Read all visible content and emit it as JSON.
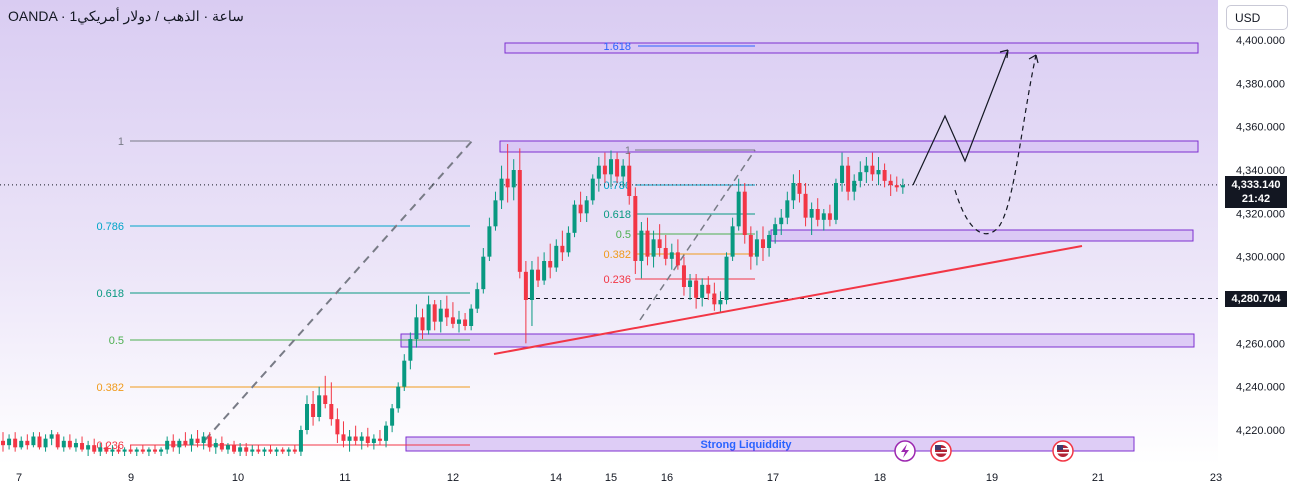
{
  "header": {
    "symbol_title": "OANDA · 1ساعة · الذهب / دولار أمريكي",
    "currency_button": "USD"
  },
  "price_axis": {
    "ticks": [
      "4,400.000",
      "4,380.000",
      "4,360.000",
      "4,340.000",
      "4,320.000",
      "4,300.000",
      "4,280.000",
      "4,260.000",
      "4,240.000",
      "4,220.000"
    ],
    "last_price": "4,333.140",
    "countdown": "21:42",
    "marked_level": "4,280.704"
  },
  "time_axis": {
    "ticks": [
      "7",
      "9",
      "10",
      "11",
      "12",
      "14",
      "15",
      "16",
      "17",
      "18",
      "19",
      "21",
      "23"
    ]
  },
  "annotations": {
    "fib_large": [
      {
        "label": "1",
        "color": "#787b86"
      },
      {
        "label": "0.786",
        "color": "#00a5c8"
      },
      {
        "label": "0.618",
        "color": "#089981"
      },
      {
        "label": "0.5",
        "color": "#4caf50"
      },
      {
        "label": "0.382",
        "color": "#f09a1b"
      },
      {
        "label": "0.236",
        "color": "#f23645"
      }
    ],
    "fib_small": [
      {
        "label": "1",
        "color": "#787b86"
      },
      {
        "label": "0.786",
        "color": "#00a5c8"
      },
      {
        "label": "0.618",
        "color": "#089981"
      },
      {
        "label": "0.5",
        "color": "#4caf50"
      },
      {
        "label": "0.382",
        "color": "#f09a1b"
      },
      {
        "label": "0.236",
        "color": "#f23645"
      }
    ],
    "extension_label": "1.618",
    "liquidity_label": "Strong Liquiddity"
  },
  "chart_data": {
    "type": "candlestick",
    "x_axis_ticks": [
      "7",
      "9",
      "10",
      "11",
      "12",
      "14",
      "15",
      "16",
      "17",
      "18",
      "19",
      "21",
      "23"
    ],
    "y_range": [
      4209,
      4410
    ],
    "colors": {
      "up": "#089981",
      "down": "#f23645",
      "zone_fill": "#d8c4f5",
      "zone_border": "#7d2fd0",
      "trendline": "#f23645",
      "background": "#ebe3f7"
    },
    "last_price": 4333.14,
    "marked_level": 4280.704,
    "candles": [
      {
        "o": 4215,
        "h": 4219,
        "l": 4210,
        "c": 4213
      },
      {
        "o": 4213,
        "h": 4218,
        "l": 4211,
        "c": 4216
      },
      {
        "o": 4216,
        "h": 4219,
        "l": 4210,
        "c": 4212
      },
      {
        "o": 4212,
        "h": 4217,
        "l": 4211,
        "c": 4215
      },
      {
        "o": 4215,
        "h": 4218,
        "l": 4211,
        "c": 4213
      },
      {
        "o": 4213,
        "h": 4219,
        "l": 4212,
        "c": 4217
      },
      {
        "o": 4217,
        "h": 4219,
        "l": 4211,
        "c": 4212
      },
      {
        "o": 4212,
        "h": 4218,
        "l": 4210,
        "c": 4216
      },
      {
        "o": 4216,
        "h": 4220,
        "l": 4213,
        "c": 4218
      },
      {
        "o": 4218,
        "h": 4219,
        "l": 4211,
        "c": 4212
      },
      {
        "o": 4212,
        "h": 4217,
        "l": 4210,
        "c": 4215
      },
      {
        "o": 4215,
        "h": 4218,
        "l": 4211,
        "c": 4212
      },
      {
        "o": 4212,
        "h": 4216,
        "l": 4210,
        "c": 4214
      },
      {
        "o": 4214,
        "h": 4217,
        "l": 4210,
        "c": 4211
      },
      {
        "o": 4211,
        "h": 4215,
        "l": 4208,
        "c": 4213
      },
      {
        "o": 4213,
        "h": 4216,
        "l": 4209,
        "c": 4210
      },
      {
        "o": 4210,
        "h": 4214,
        "l": 4208,
        "c": 4212
      },
      {
        "o": 4212,
        "h": 4214,
        "l": 4209,
        "c": 4210
      },
      {
        "o": 4210,
        "h": 4213,
        "l": 4208,
        "c": 4211
      },
      {
        "o": 4211,
        "h": 4213,
        "l": 4209,
        "c": 4210
      },
      {
        "o": 4210,
        "h": 4212,
        "l": 4208,
        "c": 4211
      },
      {
        "o": 4211,
        "h": 4213,
        "l": 4209,
        "c": 4210
      },
      {
        "o": 4210,
        "h": 4212,
        "l": 4208,
        "c": 4211
      },
      {
        "o": 4211,
        "h": 4213,
        "l": 4209,
        "c": 4210
      },
      {
        "o": 4210,
        "h": 4212,
        "l": 4208,
        "c": 4211
      },
      {
        "o": 4211,
        "h": 4213,
        "l": 4209,
        "c": 4210
      },
      {
        "o": 4210,
        "h": 4212,
        "l": 4208,
        "c": 4211
      },
      {
        "o": 4211,
        "h": 4217,
        "l": 4209,
        "c": 4215
      },
      {
        "o": 4215,
        "h": 4218,
        "l": 4210,
        "c": 4212
      },
      {
        "o": 4212,
        "h": 4216,
        "l": 4209,
        "c": 4215
      },
      {
        "o": 4215,
        "h": 4219,
        "l": 4212,
        "c": 4213
      },
      {
        "o": 4213,
        "h": 4218,
        "l": 4210,
        "c": 4216
      },
      {
        "o": 4216,
        "h": 4220,
        "l": 4212,
        "c": 4214
      },
      {
        "o": 4214,
        "h": 4219,
        "l": 4211,
        "c": 4217
      },
      {
        "o": 4217,
        "h": 4219,
        "l": 4210,
        "c": 4212
      },
      {
        "o": 4212,
        "h": 4216,
        "l": 4209,
        "c": 4214
      },
      {
        "o": 4214,
        "h": 4217,
        "l": 4210,
        "c": 4211
      },
      {
        "o": 4211,
        "h": 4214,
        "l": 4209,
        "c": 4213
      },
      {
        "o": 4213,
        "h": 4215,
        "l": 4209,
        "c": 4210
      },
      {
        "o": 4210,
        "h": 4214,
        "l": 4208,
        "c": 4212
      },
      {
        "o": 4212,
        "h": 4214,
        "l": 4208,
        "c": 4210
      },
      {
        "o": 4210,
        "h": 4213,
        "l": 4208,
        "c": 4211
      },
      {
        "o": 4211,
        "h": 4213,
        "l": 4209,
        "c": 4210
      },
      {
        "o": 4210,
        "h": 4212,
        "l": 4208,
        "c": 4211
      },
      {
        "o": 4211,
        "h": 4213,
        "l": 4209,
        "c": 4210
      },
      {
        "o": 4210,
        "h": 4212,
        "l": 4208,
        "c": 4211
      },
      {
        "o": 4211,
        "h": 4212,
        "l": 4209,
        "c": 4210
      },
      {
        "o": 4210,
        "h": 4212,
        "l": 4208,
        "c": 4211
      },
      {
        "o": 4211,
        "h": 4213,
        "l": 4209,
        "c": 4210
      },
      {
        "o": 4210,
        "h": 4222,
        "l": 4208,
        "c": 4220
      },
      {
        "o": 4220,
        "h": 4236,
        "l": 4218,
        "c": 4232
      },
      {
        "o": 4232,
        "h": 4238,
        "l": 4222,
        "c": 4226
      },
      {
        "o": 4226,
        "h": 4240,
        "l": 4224,
        "c": 4236
      },
      {
        "o": 4236,
        "h": 4245,
        "l": 4230,
        "c": 4232
      },
      {
        "o": 4232,
        "h": 4242,
        "l": 4222,
        "c": 4225
      },
      {
        "o": 4225,
        "h": 4230,
        "l": 4214,
        "c": 4218
      },
      {
        "o": 4218,
        "h": 4224,
        "l": 4212,
        "c": 4215
      },
      {
        "o": 4215,
        "h": 4220,
        "l": 4210,
        "c": 4217
      },
      {
        "o": 4217,
        "h": 4222,
        "l": 4213,
        "c": 4215
      },
      {
        "o": 4215,
        "h": 4219,
        "l": 4211,
        "c": 4217
      },
      {
        "o": 4217,
        "h": 4221,
        "l": 4212,
        "c": 4214
      },
      {
        "o": 4214,
        "h": 4218,
        "l": 4211,
        "c": 4216
      },
      {
        "o": 4216,
        "h": 4220,
        "l": 4213,
        "c": 4215
      },
      {
        "o": 4215,
        "h": 4224,
        "l": 4212,
        "c": 4222
      },
      {
        "o": 4222,
        "h": 4232,
        "l": 4219,
        "c": 4230
      },
      {
        "o": 4230,
        "h": 4242,
        "l": 4228,
        "c": 4240
      },
      {
        "o": 4240,
        "h": 4255,
        "l": 4238,
        "c": 4252
      },
      {
        "o": 4252,
        "h": 4265,
        "l": 4248,
        "c": 4262
      },
      {
        "o": 4262,
        "h": 4278,
        "l": 4258,
        "c": 4272
      },
      {
        "o": 4272,
        "h": 4276,
        "l": 4262,
        "c": 4266
      },
      {
        "o": 4266,
        "h": 4282,
        "l": 4264,
        "c": 4278
      },
      {
        "o": 4278,
        "h": 4280,
        "l": 4266,
        "c": 4270
      },
      {
        "o": 4270,
        "h": 4280,
        "l": 4265,
        "c": 4276
      },
      {
        "o": 4276,
        "h": 4282,
        "l": 4268,
        "c": 4272
      },
      {
        "o": 4272,
        "h": 4279,
        "l": 4267,
        "c": 4269
      },
      {
        "o": 4269,
        "h": 4275,
        "l": 4265,
        "c": 4271
      },
      {
        "o": 4271,
        "h": 4274,
        "l": 4266,
        "c": 4268
      },
      {
        "o": 4268,
        "h": 4278,
        "l": 4266,
        "c": 4276
      },
      {
        "o": 4276,
        "h": 4288,
        "l": 4274,
        "c": 4285
      },
      {
        "o": 4285,
        "h": 4304,
        "l": 4283,
        "c": 4300
      },
      {
        "o": 4300,
        "h": 4318,
        "l": 4298,
        "c": 4314
      },
      {
        "o": 4314,
        "h": 4330,
        "l": 4312,
        "c": 4326
      },
      {
        "o": 4326,
        "h": 4342,
        "l": 4322,
        "c": 4336
      },
      {
        "o": 4336,
        "h": 4352,
        "l": 4325,
        "c": 4332
      },
      {
        "o": 4332,
        "h": 4345,
        "l": 4326,
        "c": 4340
      },
      {
        "o": 4340,
        "h": 4350,
        "l": 4290,
        "c": 4293
      },
      {
        "o": 4293,
        "h": 4298,
        "l": 4260,
        "c": 4280
      },
      {
        "o": 4280,
        "h": 4298,
        "l": 4268,
        "c": 4294
      },
      {
        "o": 4294,
        "h": 4300,
        "l": 4286,
        "c": 4289
      },
      {
        "o": 4289,
        "h": 4302,
        "l": 4287,
        "c": 4298
      },
      {
        "o": 4298,
        "h": 4306,
        "l": 4290,
        "c": 4295
      },
      {
        "o": 4295,
        "h": 4308,
        "l": 4293,
        "c": 4305
      },
      {
        "o": 4305,
        "h": 4312,
        "l": 4298,
        "c": 4302
      },
      {
        "o": 4302,
        "h": 4314,
        "l": 4300,
        "c": 4311
      },
      {
        "o": 4311,
        "h": 4326,
        "l": 4309,
        "c": 4324
      },
      {
        "o": 4324,
        "h": 4330,
        "l": 4316,
        "c": 4320
      },
      {
        "o": 4320,
        "h": 4328,
        "l": 4316,
        "c": 4326
      },
      {
        "o": 4326,
        "h": 4338,
        "l": 4324,
        "c": 4336
      },
      {
        "o": 4336,
        "h": 4346,
        "l": 4330,
        "c": 4342
      },
      {
        "o": 4342,
        "h": 4348,
        "l": 4334,
        "c": 4338
      },
      {
        "o": 4338,
        "h": 4349,
        "l": 4332,
        "c": 4345
      },
      {
        "o": 4345,
        "h": 4348,
        "l": 4334,
        "c": 4337
      },
      {
        "o": 4337,
        "h": 4345,
        "l": 4332,
        "c": 4342
      },
      {
        "o": 4342,
        "h": 4348,
        "l": 4324,
        "c": 4328
      },
      {
        "o": 4328,
        "h": 4332,
        "l": 4292,
        "c": 4298
      },
      {
        "o": 4298,
        "h": 4316,
        "l": 4290,
        "c": 4312
      },
      {
        "o": 4312,
        "h": 4318,
        "l": 4296,
        "c": 4300
      },
      {
        "o": 4300,
        "h": 4312,
        "l": 4295,
        "c": 4308
      },
      {
        "o": 4308,
        "h": 4315,
        "l": 4300,
        "c": 4304
      },
      {
        "o": 4304,
        "h": 4310,
        "l": 4296,
        "c": 4299
      },
      {
        "o": 4299,
        "h": 4306,
        "l": 4294,
        "c": 4302
      },
      {
        "o": 4302,
        "h": 4308,
        "l": 4294,
        "c": 4296
      },
      {
        "o": 4296,
        "h": 4300,
        "l": 4282,
        "c": 4286
      },
      {
        "o": 4286,
        "h": 4292,
        "l": 4280,
        "c": 4289
      },
      {
        "o": 4289,
        "h": 4292,
        "l": 4276,
        "c": 4281
      },
      {
        "o": 4281,
        "h": 4290,
        "l": 4277,
        "c": 4287
      },
      {
        "o": 4287,
        "h": 4291,
        "l": 4280,
        "c": 4283
      },
      {
        "o": 4283,
        "h": 4288,
        "l": 4275,
        "c": 4278
      },
      {
        "o": 4278,
        "h": 4284,
        "l": 4274,
        "c": 4280
      },
      {
        "o": 4280,
        "h": 4302,
        "l": 4278,
        "c": 4300
      },
      {
        "o": 4300,
        "h": 4318,
        "l": 4298,
        "c": 4314
      },
      {
        "o": 4314,
        "h": 4336,
        "l": 4312,
        "c": 4330
      },
      {
        "o": 4330,
        "h": 4334,
        "l": 4306,
        "c": 4310
      },
      {
        "o": 4310,
        "h": 4314,
        "l": 4294,
        "c": 4300
      },
      {
        "o": 4300,
        "h": 4312,
        "l": 4296,
        "c": 4308
      },
      {
        "o": 4308,
        "h": 4314,
        "l": 4298,
        "c": 4304
      },
      {
        "o": 4304,
        "h": 4312,
        "l": 4300,
        "c": 4310
      },
      {
        "o": 4310,
        "h": 4318,
        "l": 4306,
        "c": 4315
      },
      {
        "o": 4315,
        "h": 4322,
        "l": 4310,
        "c": 4318
      },
      {
        "o": 4318,
        "h": 4330,
        "l": 4315,
        "c": 4326
      },
      {
        "o": 4326,
        "h": 4338,
        "l": 4322,
        "c": 4334
      },
      {
        "o": 4334,
        "h": 4340,
        "l": 4325,
        "c": 4329
      },
      {
        "o": 4329,
        "h": 4334,
        "l": 4314,
        "c": 4318
      },
      {
        "o": 4318,
        "h": 4325,
        "l": 4310,
        "c": 4322
      },
      {
        "o": 4322,
        "h": 4327,
        "l": 4314,
        "c": 4317
      },
      {
        "o": 4317,
        "h": 4322,
        "l": 4312,
        "c": 4320
      },
      {
        "o": 4320,
        "h": 4324,
        "l": 4314,
        "c": 4317
      },
      {
        "o": 4317,
        "h": 4336,
        "l": 4315,
        "c": 4334
      },
      {
        "o": 4334,
        "h": 4348,
        "l": 4330,
        "c": 4342
      },
      {
        "o": 4342,
        "h": 4346,
        "l": 4326,
        "c": 4330
      },
      {
        "o": 4330,
        "h": 4338,
        "l": 4326,
        "c": 4335
      },
      {
        "o": 4335,
        "h": 4344,
        "l": 4332,
        "c": 4339
      },
      {
        "o": 4339,
        "h": 4346,
        "l": 4334,
        "c": 4342
      },
      {
        "o": 4342,
        "h": 4348,
        "l": 4335,
        "c": 4338
      },
      {
        "o": 4338,
        "h": 4346,
        "l": 4333,
        "c": 4340
      },
      {
        "o": 4340,
        "h": 4343,
        "l": 4332,
        "c": 4335
      },
      {
        "o": 4335,
        "h": 4338,
        "l": 4328,
        "c": 4333
      },
      {
        "o": 4333,
        "h": 4337,
        "l": 4330,
        "c": 4332
      },
      {
        "o": 4332,
        "h": 4336,
        "l": 4329,
        "c": 4333
      }
    ]
  }
}
